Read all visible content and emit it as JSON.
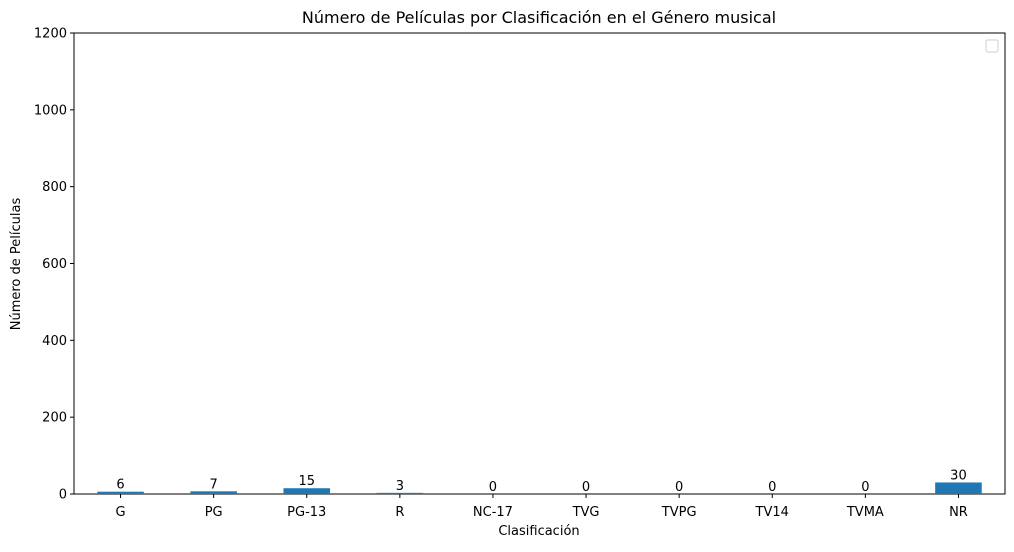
{
  "chart_data": {
    "type": "bar",
    "title": "Número de Películas por Clasificación en el Género musical",
    "xlabel": "Clasificación",
    "ylabel": "Número de Películas",
    "categories": [
      "G",
      "PG",
      "PG-13",
      "R",
      "NC-17",
      "TVG",
      "TVPG",
      "TV14",
      "TVMA",
      "NR"
    ],
    "values": [
      6,
      7,
      15,
      3,
      0,
      0,
      0,
      0,
      0,
      30
    ],
    "ylim": [
      0,
      1200
    ],
    "yticks": [
      0,
      200,
      400,
      600,
      800,
      1000,
      1200
    ],
    "grid": false,
    "legend": "top-right (empty)",
    "bar_color": "#1f77b4"
  }
}
